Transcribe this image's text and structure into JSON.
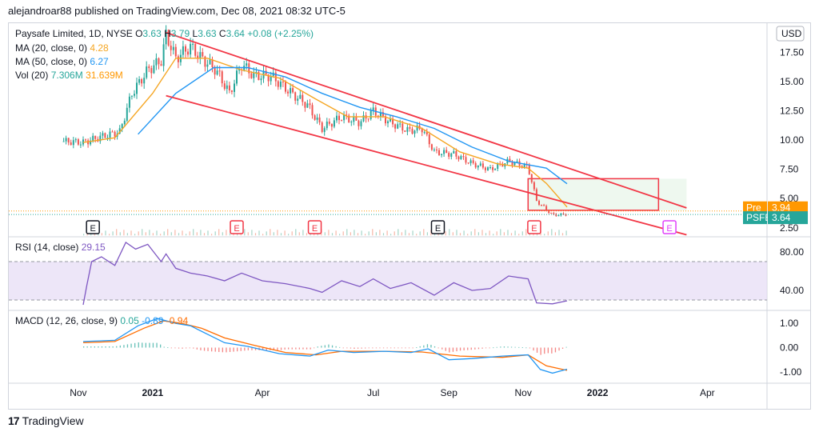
{
  "header": "alejandroar88 published on TradingView.com, Dec 08, 2021 08:32 UTC-5",
  "footer": {
    "brand": "TradingView"
  },
  "legend": {
    "symbol": "Paysafe Limited, 1D, NYSE",
    "o_label": "O",
    "o": "3.63",
    "h_label": "H",
    "h": "3.79",
    "l_label": "L",
    "l": "3.63",
    "c_label": "C",
    "c": "3.64",
    "change": "+0.08 (+2.25%)",
    "ma20_label": "MA (20, close, 0)",
    "ma20": "4.28",
    "ma50_label": "MA (50, close, 0)",
    "ma50": "6.27",
    "vol_label": "Vol (20)",
    "vol1": "7.306M",
    "vol2": "31.639M"
  },
  "currency": "USD",
  "price_tags": [
    {
      "name": "Pre",
      "value": "3.94",
      "color": "#ff9800"
    },
    {
      "name": "PSFE",
      "value": "3.64",
      "color": "#26a69a"
    }
  ],
  "earnings_markers": [
    {
      "label": "E",
      "date": "2020-11-13",
      "type": "past"
    },
    {
      "label": "E",
      "date": "2021-03-11",
      "type": "past_red"
    },
    {
      "label": "E",
      "date": "2021-05-14",
      "type": "past_red"
    },
    {
      "label": "E",
      "date": "2021-08-23",
      "type": "past"
    },
    {
      "label": "E",
      "date": "2021-11-10",
      "type": "past_red"
    },
    {
      "label": "E",
      "date": "2022-03-01",
      "type": "future"
    }
  ],
  "rsi": {
    "label": "RSI (14, close)",
    "value": "29.15",
    "upper": 70,
    "lower": 30
  },
  "macd": {
    "label": "MACD (12, 26, close, 9)",
    "hist": "0.05",
    "macd": "-0.89",
    "signal": "-0.94"
  },
  "colors": {
    "up": "#26a69a",
    "down": "#ef5350",
    "ma20": "#f5a623",
    "ma50": "#2196f3",
    "channel": "#f23645",
    "rsi": "#7e57c2",
    "rsi_band": "#e6dcf5",
    "macd": "#2196f3",
    "signal": "#ff6d00",
    "box": "#f23645",
    "box_fill": "#e8f5e9"
  },
  "chart_data": [
    {
      "type": "candlestick",
      "title": "Paysafe Limited, 1D, NYSE",
      "xlabel": "",
      "ylabel": "USD",
      "x_ticks": [
        "Nov",
        "2021",
        "Apr",
        "Jul",
        "Sep",
        "Nov",
        "2022",
        "Apr"
      ],
      "y_ticks": [
        2.5,
        5.0,
        7.5,
        10.0,
        12.5,
        15.0,
        17.5
      ],
      "ylim": [
        1.8,
        20
      ],
      "close_series": [
        [
          "2020-10-20",
          9.9
        ],
        [
          "2020-11-05",
          9.8
        ],
        [
          "2020-11-20",
          10.3
        ],
        [
          "2020-12-05",
          10.7
        ],
        [
          "2020-12-15",
          14.0
        ],
        [
          "2020-12-28",
          16.0
        ],
        [
          "2021-01-08",
          16.8
        ],
        [
          "2021-01-12",
          19.0
        ],
        [
          "2021-01-20",
          17.0
        ],
        [
          "2021-02-01",
          18.0
        ],
        [
          "2021-02-10",
          17.0
        ],
        [
          "2021-02-22",
          16.0
        ],
        [
          "2021-03-05",
          14.0
        ],
        [
          "2021-03-15",
          16.5
        ],
        [
          "2021-03-25",
          15.5
        ],
        [
          "2021-04-08",
          15.5
        ],
        [
          "2021-04-25",
          14.0
        ],
        [
          "2021-05-08",
          13.0
        ],
        [
          "2021-05-20",
          11.0
        ],
        [
          "2021-06-05",
          12.0
        ],
        [
          "2021-06-20",
          11.5
        ],
        [
          "2021-07-01",
          12.5
        ],
        [
          "2021-07-15",
          11.5
        ],
        [
          "2021-07-30",
          10.8
        ],
        [
          "2021-08-10",
          11.0
        ],
        [
          "2021-08-20",
          9.0
        ],
        [
          "2021-09-05",
          8.8
        ],
        [
          "2021-09-20",
          8.0
        ],
        [
          "2021-10-05",
          7.5
        ],
        [
          "2021-10-20",
          8.2
        ],
        [
          "2021-11-05",
          7.7
        ],
        [
          "2021-11-12",
          4.8
        ],
        [
          "2021-11-25",
          3.6
        ],
        [
          "2021-12-07",
          3.64
        ]
      ],
      "ma20_series": [
        [
          "2020-11-05",
          9.8
        ],
        [
          "2020-12-01",
          10.2
        ],
        [
          "2021-01-01",
          14.0
        ],
        [
          "2021-01-20",
          17.0
        ],
        [
          "2021-02-15",
          17.0
        ],
        [
          "2021-03-15",
          16.0
        ],
        [
          "2021-04-15",
          15.3
        ],
        [
          "2021-05-15",
          13.5
        ],
        [
          "2021-06-10",
          12.0
        ],
        [
          "2021-07-10",
          12.0
        ],
        [
          "2021-08-10",
          11.0
        ],
        [
          "2021-09-10",
          9.0
        ],
        [
          "2021-10-10",
          8.0
        ],
        [
          "2021-11-05",
          7.6
        ],
        [
          "2021-11-20",
          6.3
        ],
        [
          "2021-12-07",
          4.28
        ]
      ],
      "ma50_series": [
        [
          "2020-12-20",
          10.5
        ],
        [
          "2021-01-20",
          14.0
        ],
        [
          "2021-02-20",
          16.2
        ],
        [
          "2021-03-20",
          16.2
        ],
        [
          "2021-04-20",
          15.4
        ],
        [
          "2021-05-20",
          14.0
        ],
        [
          "2021-06-20",
          12.8
        ],
        [
          "2021-07-20",
          12.0
        ],
        [
          "2021-08-20",
          11.0
        ],
        [
          "2021-09-20",
          9.4
        ],
        [
          "2021-10-20",
          8.2
        ],
        [
          "2021-11-20",
          7.6
        ],
        [
          "2021-12-07",
          6.27
        ]
      ],
      "channel_upper": [
        [
          "2021-01-12",
          19.2
        ],
        [
          "2022-03-15",
          4.2
        ]
      ],
      "channel_lower": [
        [
          "2021-01-12",
          13.8
        ],
        [
          "2022-03-15",
          1.9
        ]
      ],
      "zone": {
        "from": "2021-11-05",
        "to": "2022-03-15",
        "low": 4.0,
        "high": 6.7
      }
    },
    {
      "type": "line",
      "title": "RSI (14, close)",
      "y_ticks": [
        40,
        80
      ],
      "ylim": [
        20,
        95
      ],
      "series": [
        [
          "2020-11-05",
          25
        ],
        [
          "2020-11-08",
          45
        ],
        [
          "2020-11-12",
          70
        ],
        [
          "2020-11-20",
          75
        ],
        [
          "2020-12-01",
          66
        ],
        [
          "2020-12-10",
          90
        ],
        [
          "2020-12-18",
          83
        ],
        [
          "2020-12-28",
          88
        ],
        [
          "2021-01-08",
          70
        ],
        [
          "2021-01-12",
          78
        ],
        [
          "2021-01-20",
          63
        ],
        [
          "2021-02-01",
          58
        ],
        [
          "2021-02-15",
          55
        ],
        [
          "2021-03-01",
          50
        ],
        [
          "2021-03-15",
          58
        ],
        [
          "2021-04-01",
          50
        ],
        [
          "2021-04-20",
          47
        ],
        [
          "2021-05-10",
          42
        ],
        [
          "2021-05-20",
          38
        ],
        [
          "2021-06-05",
          50
        ],
        [
          "2021-06-20",
          44
        ],
        [
          "2021-07-01",
          52
        ],
        [
          "2021-07-15",
          42
        ],
        [
          "2021-08-01",
          48
        ],
        [
          "2021-08-20",
          35
        ],
        [
          "2021-09-05",
          48
        ],
        [
          "2021-09-20",
          40
        ],
        [
          "2021-10-05",
          42
        ],
        [
          "2021-10-20",
          55
        ],
        [
          "2021-11-05",
          52
        ],
        [
          "2021-11-12",
          27
        ],
        [
          "2021-11-25",
          26
        ],
        [
          "2021-12-07",
          29.15
        ]
      ]
    },
    {
      "type": "line",
      "title": "MACD (12, 26, close, 9)",
      "y_ticks": [
        -1.0,
        0.0,
        1.0
      ],
      "ylim": [
        -1.4,
        1.5
      ],
      "macd_series": [
        [
          "2020-11-05",
          0.25
        ],
        [
          "2020-12-01",
          0.3
        ],
        [
          "2020-12-20",
          0.9
        ],
        [
          "2021-01-05",
          1.2
        ],
        [
          "2021-01-20",
          1.0
        ],
        [
          "2021-02-01",
          0.9
        ],
        [
          "2021-02-15",
          0.55
        ],
        [
          "2021-03-01",
          0.2
        ],
        [
          "2021-03-20",
          0.05
        ],
        [
          "2021-04-15",
          -0.25
        ],
        [
          "2021-05-10",
          -0.35
        ],
        [
          "2021-05-25",
          -0.1
        ],
        [
          "2021-06-15",
          -0.2
        ],
        [
          "2021-07-10",
          -0.15
        ],
        [
          "2021-08-01",
          -0.2
        ],
        [
          "2021-08-15",
          -0.05
        ],
        [
          "2021-09-01",
          -0.5
        ],
        [
          "2021-09-20",
          -0.45
        ],
        [
          "2021-10-15",
          -0.35
        ],
        [
          "2021-11-05",
          -0.3
        ],
        [
          "2021-11-15",
          -0.9
        ],
        [
          "2021-11-25",
          -1.05
        ],
        [
          "2021-12-07",
          -0.89
        ]
      ],
      "signal_series": [
        [
          "2020-11-05",
          0.2
        ],
        [
          "2020-12-01",
          0.25
        ],
        [
          "2020-12-25",
          0.8
        ],
        [
          "2021-01-10",
          1.1
        ],
        [
          "2021-01-25",
          1.0
        ],
        [
          "2021-02-10",
          0.8
        ],
        [
          "2021-03-01",
          0.4
        ],
        [
          "2021-03-25",
          0.1
        ],
        [
          "2021-04-20",
          -0.2
        ],
        [
          "2021-05-15",
          -0.3
        ],
        [
          "2021-06-05",
          -0.15
        ],
        [
          "2021-07-10",
          -0.15
        ],
        [
          "2021-08-10",
          -0.18
        ],
        [
          "2021-09-10",
          -0.35
        ],
        [
          "2021-10-15",
          -0.4
        ],
        [
          "2021-11-05",
          -0.3
        ],
        [
          "2021-11-20",
          -0.75
        ],
        [
          "2021-12-07",
          -0.94
        ]
      ]
    }
  ]
}
